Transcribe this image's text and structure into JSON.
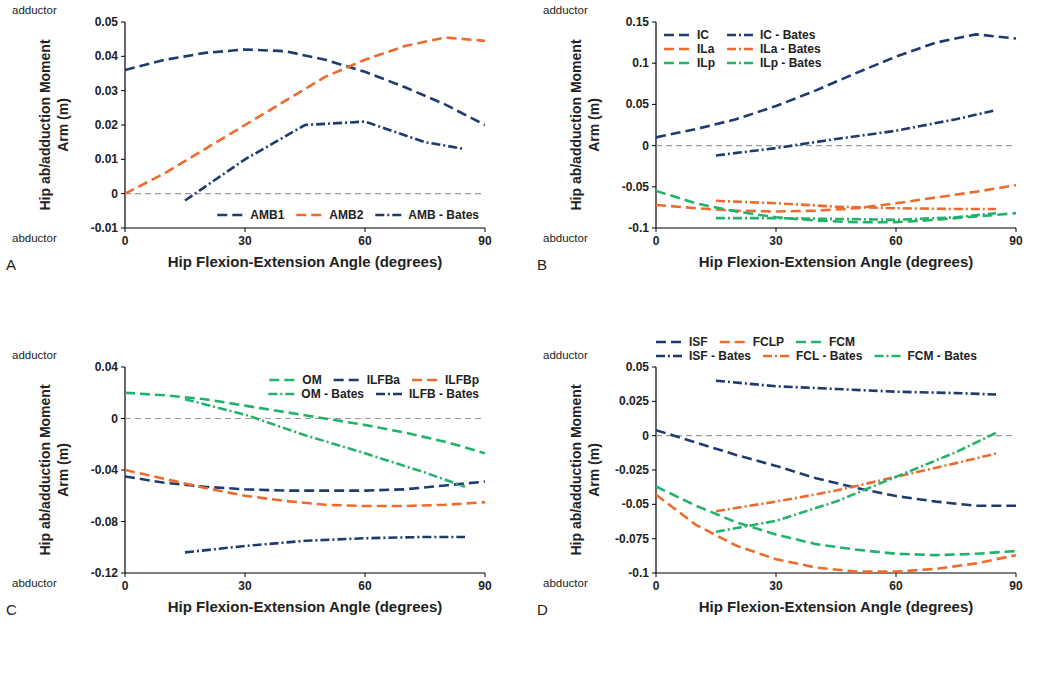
{
  "chart_data": [
    {
      "type": "line",
      "panel": "A",
      "x_label": "Hip Flexion-Extension Angle (degrees)",
      "y_label": "Hip ab/adduction Moment Arm (m)",
      "annotations": [
        "adductor",
        "abductor"
      ],
      "xlim": [
        0,
        90
      ],
      "xticks": [
        0,
        30,
        60,
        90
      ],
      "ylim": [
        -0.01,
        0.05
      ],
      "yticks": [
        -0.01,
        0,
        0.01,
        0.02,
        0.03,
        0.04,
        0.05
      ],
      "reference_line": 0,
      "grid": false,
      "legend": "lower right",
      "series": [
        {
          "name": "AMB1",
          "color": "#1f3b6e",
          "line_style": "dashed",
          "x": [
            0,
            10,
            20,
            30,
            40,
            50,
            60,
            70,
            80,
            90
          ],
          "values": [
            0.036,
            0.039,
            0.041,
            0.042,
            0.0415,
            0.039,
            0.0355,
            0.031,
            0.026,
            0.02
          ]
        },
        {
          "name": "AMB2",
          "color": "#ec6b2d",
          "line_style": "dashed",
          "x": [
            0,
            10,
            20,
            30,
            40,
            50,
            60,
            70,
            80,
            90
          ],
          "values": [
            0,
            0.006,
            0.013,
            0.02,
            0.027,
            0.034,
            0.039,
            0.043,
            0.0455,
            0.0445
          ]
        },
        {
          "name": "AMB - Bates",
          "color": "#1f3b6e",
          "line_style": "dashdot",
          "x": [
            15,
            30,
            45,
            60,
            75,
            85
          ],
          "values": [
            -0.002,
            0.01,
            0.02,
            0.021,
            0.015,
            0.013
          ]
        }
      ]
    },
    {
      "type": "line",
      "panel": "B",
      "x_label": "Hip Flexion-Extension Angle (degrees)",
      "y_label": "Hip ab/adduction Moment Arm (m)",
      "annotations": [
        "adductor",
        "abductor"
      ],
      "xlim": [
        0,
        90
      ],
      "xticks": [
        0,
        30,
        60,
        90
      ],
      "ylim": [
        -0.1,
        0.15
      ],
      "yticks": [
        -0.1,
        -0.05,
        0,
        0.05,
        0.1,
        0.15
      ],
      "reference_line": 0,
      "grid": false,
      "legend": "upper left",
      "series": [
        {
          "name": "IC",
          "color": "#1f3b6e",
          "line_style": "dashed",
          "x": [
            0,
            10,
            20,
            30,
            40,
            50,
            60,
            70,
            80,
            90
          ],
          "values": [
            0.01,
            0.02,
            0.032,
            0.048,
            0.067,
            0.088,
            0.108,
            0.125,
            0.135,
            0.13
          ]
        },
        {
          "name": "ILa",
          "color": "#ec6b2d",
          "line_style": "dashed",
          "x": [
            0,
            10,
            20,
            30,
            40,
            50,
            60,
            70,
            80,
            90
          ],
          "values": [
            -0.072,
            -0.076,
            -0.079,
            -0.08,
            -0.079,
            -0.076,
            -0.07,
            -0.063,
            -0.056,
            -0.048
          ]
        },
        {
          "name": "ILp",
          "color": "#22b26b",
          "line_style": "dashed",
          "x": [
            0,
            10,
            20,
            30,
            40,
            50,
            60,
            70,
            80,
            90
          ],
          "values": [
            -0.055,
            -0.07,
            -0.08,
            -0.087,
            -0.091,
            -0.093,
            -0.093,
            -0.09,
            -0.086,
            -0.082
          ]
        },
        {
          "name": "IC - Bates",
          "color": "#1f3b6e",
          "line_style": "dashdot",
          "x": [
            15,
            30,
            45,
            60,
            75,
            85
          ],
          "values": [
            -0.012,
            -0.003,
            0.008,
            0.018,
            0.032,
            0.043
          ]
        },
        {
          "name": "ILa - Bates",
          "color": "#ec6b2d",
          "line_style": "dashdot",
          "x": [
            15,
            30,
            45,
            60,
            75,
            85
          ],
          "values": [
            -0.067,
            -0.07,
            -0.074,
            -0.076,
            -0.077,
            -0.077
          ]
        },
        {
          "name": "ILp - Bates",
          "color": "#22b26b",
          "line_style": "dashdot",
          "x": [
            15,
            30,
            45,
            60,
            75,
            85
          ],
          "values": [
            -0.088,
            -0.088,
            -0.089,
            -0.09,
            -0.087,
            -0.082
          ]
        }
      ]
    },
    {
      "type": "line",
      "panel": "C",
      "x_label": "Hip Flexion-Extension Angle (degrees)",
      "y_label": "Hip ab/adduction Moment Arm (m)",
      "annotations": [
        "adductor",
        "abductor"
      ],
      "xlim": [
        0,
        90
      ],
      "xticks": [
        0,
        30,
        60,
        90
      ],
      "ylim": [
        -0.12,
        0.04
      ],
      "yticks": [
        -0.12,
        -0.08,
        -0.04,
        0,
        0.04
      ],
      "reference_line": 0,
      "grid": false,
      "legend": "upper right",
      "series": [
        {
          "name": "OM",
          "color": "#22b26b",
          "line_style": "dashed",
          "x": [
            0,
            10,
            20,
            30,
            40,
            50,
            60,
            70,
            80,
            90
          ],
          "values": [
            0.02,
            0.018,
            0.015,
            0.01,
            0.005,
            0,
            -0.005,
            -0.011,
            -0.018,
            -0.027
          ]
        },
        {
          "name": "ILFBa",
          "color": "#1f3b6e",
          "line_style": "dashed",
          "x": [
            0,
            10,
            20,
            30,
            40,
            50,
            60,
            70,
            80,
            90
          ],
          "values": [
            -0.045,
            -0.05,
            -0.053,
            -0.055,
            -0.056,
            -0.056,
            -0.056,
            -0.055,
            -0.052,
            -0.049
          ]
        },
        {
          "name": "ILFBp",
          "color": "#ec6b2d",
          "line_style": "dashed",
          "x": [
            0,
            10,
            20,
            30,
            40,
            50,
            60,
            70,
            80,
            90
          ],
          "values": [
            -0.04,
            -0.047,
            -0.054,
            -0.06,
            -0.064,
            -0.067,
            -0.068,
            -0.068,
            -0.067,
            -0.065
          ]
        },
        {
          "name": "OM - Bates",
          "color": "#22b26b",
          "line_style": "dashdot",
          "x": [
            15,
            30,
            45,
            60,
            75,
            85
          ],
          "values": [
            0.015,
            0.003,
            -0.013,
            -0.027,
            -0.042,
            -0.053
          ]
        },
        {
          "name": "ILFB - Bates",
          "color": "#1f3b6e",
          "line_style": "dashdot",
          "x": [
            15,
            30,
            45,
            60,
            75,
            85
          ],
          "values": [
            -0.104,
            -0.099,
            -0.095,
            -0.093,
            -0.092,
            -0.092
          ]
        }
      ]
    },
    {
      "type": "line",
      "panel": "D",
      "x_label": "Hip Flexion-Extension Angle (degrees)",
      "y_label": "Hip ab/adduction Moment Arm (m)",
      "annotations": [
        "adductor",
        "abductor"
      ],
      "xlim": [
        0,
        90
      ],
      "xticks": [
        0,
        30,
        60,
        90
      ],
      "ylim": [
        -0.1,
        0.05
      ],
      "yticks": [
        -0.1,
        -0.075,
        -0.05,
        -0.025,
        0,
        0.025,
        0.05
      ],
      "reference_line": 0,
      "grid": false,
      "legend": "top",
      "series": [
        {
          "name": "ISF",
          "color": "#1f3b6e",
          "line_style": "dashed",
          "x": [
            0,
            10,
            20,
            30,
            40,
            50,
            60,
            70,
            80,
            90
          ],
          "values": [
            0.004,
            -0.005,
            -0.014,
            -0.022,
            -0.031,
            -0.038,
            -0.044,
            -0.048,
            -0.051,
            -0.051
          ]
        },
        {
          "name": "FCLP",
          "color": "#ec6b2d",
          "line_style": "dashed",
          "x": [
            0,
            10,
            20,
            30,
            40,
            50,
            60,
            70,
            80,
            90
          ],
          "values": [
            -0.043,
            -0.065,
            -0.08,
            -0.09,
            -0.096,
            -0.099,
            -0.099,
            -0.097,
            -0.093,
            -0.087
          ]
        },
        {
          "name": "FCM",
          "color": "#22b26b",
          "line_style": "dashed",
          "x": [
            0,
            10,
            20,
            30,
            40,
            50,
            60,
            70,
            80,
            90
          ],
          "values": [
            -0.037,
            -0.051,
            -0.063,
            -0.072,
            -0.079,
            -0.083,
            -0.086,
            -0.087,
            -0.086,
            -0.084
          ]
        },
        {
          "name": "ISF - Bates",
          "color": "#1f3b6e",
          "line_style": "dashdot",
          "x": [
            15,
            30,
            45,
            60,
            75,
            85
          ],
          "values": [
            0.04,
            0.036,
            0.034,
            0.032,
            0.031,
            0.03
          ]
        },
        {
          "name": "FCL - Bates",
          "color": "#ec6b2d",
          "line_style": "dashdot",
          "x": [
            15,
            30,
            45,
            60,
            75,
            85
          ],
          "values": [
            -0.055,
            -0.048,
            -0.04,
            -0.03,
            -0.02,
            -0.013
          ]
        },
        {
          "name": "FCM - Bates",
          "color": "#22b26b",
          "line_style": "dashdot",
          "x": [
            15,
            30,
            45,
            60,
            75,
            85
          ],
          "values": [
            -0.07,
            -0.062,
            -0.048,
            -0.03,
            -0.012,
            0.002
          ]
        }
      ]
    }
  ]
}
